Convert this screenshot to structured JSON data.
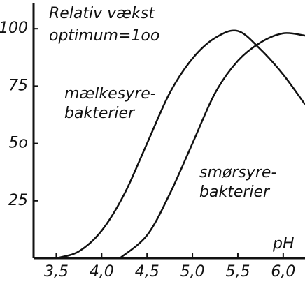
{
  "chart_data": {
    "type": "line",
    "title": "Relativ vækst",
    "subtitle": "optimum=1oo",
    "x_label": "pH",
    "xlim": [
      3.25,
      6.24
    ],
    "ylim": [
      0,
      111
    ],
    "xticks": [
      {
        "value": 3.5,
        "label": "3,5"
      },
      {
        "value": 4.0,
        "label": "4,0"
      },
      {
        "value": 4.5,
        "label": "4,5"
      },
      {
        "value": 5.0,
        "label": "5,0"
      },
      {
        "value": 5.5,
        "label": "5,5"
      },
      {
        "value": 6.0,
        "label": "6,0"
      }
    ],
    "yticks": [
      25,
      {
        "value": 50,
        "label": "5o"
      },
      75,
      100
    ],
    "grid": false,
    "series": [
      {
        "label": [
          "mælkesyre-",
          "bakterier"
        ],
        "color": "#111",
        "x": [
          3.5,
          3.75,
          4.0,
          4.25,
          4.5,
          4.75,
          5.0,
          5.25,
          5.5,
          5.75,
          6.0,
          6.24
        ],
        "values": [
          0,
          3,
          12,
          28,
          50,
          72,
          87,
          96,
          99,
          91,
          80,
          67
        ]
      },
      {
        "label": [
          "smørsyre-",
          "bakterier"
        ],
        "color": "#111",
        "x": [
          4.2,
          4.5,
          4.75,
          5.0,
          5.25,
          5.5,
          5.75,
          6.0,
          6.24
        ],
        "values": [
          0,
          10,
          28,
          50,
          72,
          86,
          94,
          98,
          97
        ]
      }
    ]
  }
}
